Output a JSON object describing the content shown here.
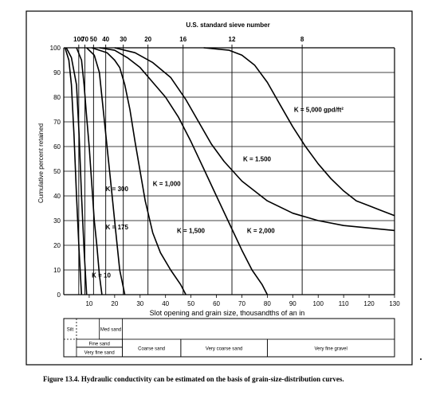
{
  "chart_data": {
    "type": "line",
    "top_axis_title": "U.S. standard sieve number",
    "top_ticks": [
      {
        "label": "100",
        "x": 5.9
      },
      {
        "label": "70",
        "x": 8.3
      },
      {
        "label": "50",
        "x": 11.7
      },
      {
        "label": "40",
        "x": 16.5
      },
      {
        "label": "30",
        "x": 23.4
      },
      {
        "label": "20",
        "x": 33.1
      },
      {
        "label": "16",
        "x": 46.9
      },
      {
        "label": "12",
        "x": 66.1
      },
      {
        "label": "8",
        "x": 93.7
      }
    ],
    "xlabel": "Slot opening and grain size, thousandths of an in",
    "ylabel": "Cumulative percent retained",
    "xlim": [
      0,
      130
    ],
    "ylim": [
      0,
      100
    ],
    "xticks": [
      "10",
      "20",
      "30",
      "40",
      "50",
      "60",
      "70",
      "80",
      "90",
      "100",
      "110",
      "120",
      "130"
    ],
    "yticks": [
      "0",
      "10",
      "20",
      "30",
      "40",
      "50",
      "60",
      "70",
      "80",
      "90",
      "100"
    ],
    "grid": true,
    "series": [
      {
        "name": "K = 10",
        "x": [
          0.5,
          2,
          3,
          4,
          5,
          6,
          7
        ],
        "y": [
          100,
          95,
          85,
          65,
          40,
          18,
          0
        ]
      },
      {
        "name": "K = 175",
        "x": [
          1,
          3,
          5,
          6,
          7,
          8,
          9
        ],
        "y": [
          100,
          96,
          85,
          65,
          40,
          18,
          0
        ]
      },
      {
        "name": "K = 300",
        "x": [
          5,
          7,
          8,
          9,
          10,
          11,
          12,
          13,
          14,
          15
        ],
        "y": [
          100,
          95,
          85,
          72,
          60,
          45,
          30,
          20,
          8,
          0
        ]
      },
      {
        "name": "K = 1,000",
        "x": [
          9,
          12,
          14,
          15,
          16,
          17,
          18,
          19,
          20,
          21,
          22,
          24
        ],
        "y": [
          100,
          97,
          90,
          80,
          70,
          60,
          50,
          40,
          30,
          20,
          10,
          0
        ]
      },
      {
        "name": "K = 1,500",
        "x": [
          11,
          17,
          20,
          22,
          24,
          26,
          28,
          30,
          32,
          35,
          38,
          42,
          46,
          48
        ],
        "y": [
          100,
          98,
          95,
          92,
          85,
          75,
          62,
          50,
          38,
          25,
          17,
          10,
          4,
          0
        ]
      },
      {
        "name": "K = 2,000",
        "x": [
          14,
          20,
          25,
          30,
          35,
          40,
          45,
          50,
          55,
          60,
          65,
          70,
          74,
          78,
          80
        ],
        "y": [
          100,
          99,
          96,
          92,
          86,
          80,
          72,
          62,
          51,
          40,
          29,
          18,
          10,
          4,
          0
        ]
      },
      {
        "name": "K = 1,500",
        "x": [
          20,
          28,
          35,
          42,
          48,
          53,
          58,
          63,
          70,
          80,
          90,
          100,
          110,
          120,
          130
        ],
        "y": [
          100,
          98,
          94,
          88,
          79,
          70,
          61,
          54,
          46,
          38,
          33,
          30,
          28,
          27,
          26
        ]
      },
      {
        "name": "K = 5,000 gpd/ft²",
        "x": [
          55,
          65,
          70,
          75,
          80,
          85,
          90,
          95,
          100,
          105,
          110,
          115,
          120,
          125,
          130
        ],
        "y": [
          100,
          99,
          97,
          93,
          86,
          77,
          68,
          60,
          53,
          47,
          42,
          38,
          36,
          34,
          32
        ]
      }
    ],
    "annotations": [
      {
        "text": "K = 5,000 gpd/ft²",
        "x": 90.5,
        "y": 74
      },
      {
        "text": "K = 1.500",
        "x": 70.5,
        "y": 54
      },
      {
        "text": "K = 1,000",
        "x": 35,
        "y": 44
      },
      {
        "text": "K = 300",
        "x": 16.5,
        "y": 42
      },
      {
        "text": "K = 175",
        "x": 16.5,
        "y": 26.5
      },
      {
        "text": "K = 1,500",
        "x": 44.5,
        "y": 25
      },
      {
        "text": "K = 2,000",
        "x": 72,
        "y": 25
      },
      {
        "text": "K = 10",
        "x": 11,
        "y": 7
      }
    ],
    "soil_classes": [
      {
        "label": "Silt",
        "row": "upper",
        "from": 0,
        "to": 5
      },
      {
        "label": "Med sand",
        "row": "upper",
        "from": 14,
        "to": 23
      },
      {
        "label": "Fine sand",
        "row": "middle",
        "from": 5,
        "to": 23
      },
      {
        "label": "Very fine sand",
        "row": "lower",
        "from": 5,
        "to": 23
      },
      {
        "label": "Coarse sand",
        "row": "full",
        "from": 23,
        "to": 46
      },
      {
        "label": "Very coarse sand",
        "row": "full",
        "from": 46,
        "to": 80
      },
      {
        "label": "Very fine gravel",
        "row": "full",
        "from": 80,
        "to": 130
      }
    ]
  },
  "caption": {
    "label": "Figure 13.4.",
    "text": "Hydraulic conductivity can be estimated on the basis of grain-size-distribution curves."
  }
}
